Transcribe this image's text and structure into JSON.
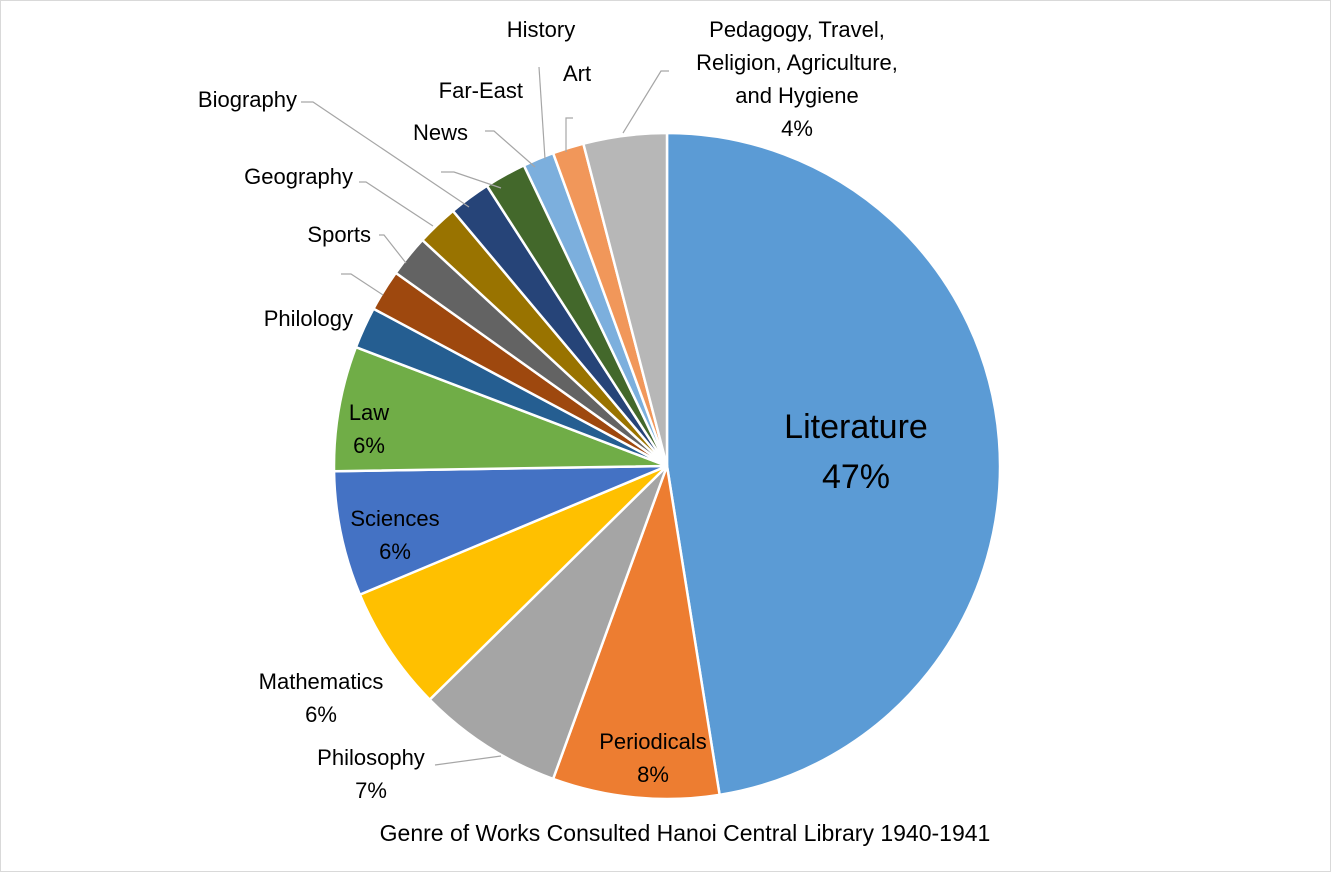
{
  "chart_data": {
    "type": "pie",
    "title": "Genre of Works Consulted Hanoi Central Library 1940-1941",
    "start_angle_deg": 0,
    "direction": "clockwise",
    "slices": [
      {
        "name": "Literature",
        "value": 47,
        "percent_label": "47%",
        "show_percent": true,
        "color": "#5b9bd5"
      },
      {
        "name": "Periodicals",
        "value": 8,
        "percent_label": "8%",
        "show_percent": true,
        "color": "#ed7d31"
      },
      {
        "name": "Philosophy",
        "value": 7,
        "percent_label": "7%",
        "show_percent": true,
        "color": "#a5a5a5"
      },
      {
        "name": "Mathematics",
        "value": 6,
        "percent_label": "6%",
        "show_percent": true,
        "color": "#ffc000"
      },
      {
        "name": "Sciences",
        "value": 6,
        "percent_label": "6%",
        "show_percent": true,
        "color": "#4472c4"
      },
      {
        "name": "Law",
        "value": 6,
        "percent_label": "6%",
        "show_percent": true,
        "color": "#70ad47"
      },
      {
        "name": "Philology",
        "value": 2,
        "percent_label": "",
        "show_percent": false,
        "color": "#255e91"
      },
      {
        "name": "",
        "value": 2,
        "percent_label": "",
        "show_percent": false,
        "color": "#9e480e"
      },
      {
        "name": "Sports",
        "value": 2,
        "percent_label": "",
        "show_percent": false,
        "color": "#636363"
      },
      {
        "name": "Geography",
        "value": 2,
        "percent_label": "",
        "show_percent": false,
        "color": "#997300"
      },
      {
        "name": "Biography",
        "value": 2,
        "percent_label": "",
        "show_percent": false,
        "color": "#264478"
      },
      {
        "name": "News",
        "value": 2,
        "percent_label": "",
        "show_percent": false,
        "color": "#43682b"
      },
      {
        "name": "Far-East",
        "value": 1.5,
        "percent_label": "",
        "show_percent": false,
        "color": "#7cafdd"
      },
      {
        "name": "History",
        "value": 1.5,
        "percent_label": "",
        "show_percent": false,
        "color": "#f1975a"
      },
      {
        "name": "Art",
        "value": 0,
        "percent_label": "",
        "show_percent": false,
        "color": "#ffffff"
      },
      {
        "name": "Pedagogy, Travel, Religion, Agriculture, and Hygiene",
        "value": 4,
        "percent_label": "4%",
        "show_percent": true,
        "color": "#b7b7b7"
      }
    ]
  }
}
